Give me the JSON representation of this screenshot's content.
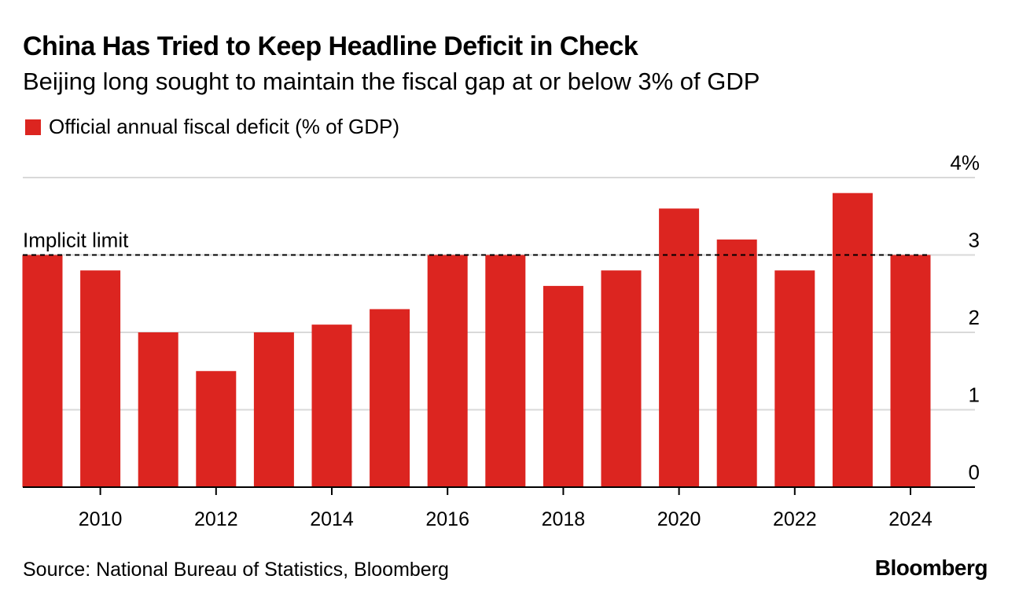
{
  "header": {
    "title": "China Has Tried to Keep Headline Deficit in Check",
    "subtitle": "Beijing long sought to maintain the fiscal gap at or below 3% of GDP"
  },
  "legend": {
    "label": "Official annual fiscal deficit (% of GDP)"
  },
  "footer": {
    "source": "Source: National Bureau of Statistics, Bloomberg",
    "brand": "Bloomberg"
  },
  "colors": {
    "bar": "#dc2520",
    "grid": "#d9d9d9",
    "axis": "#000000",
    "text": "#000000"
  },
  "chart_data": {
    "type": "bar",
    "title": "China Has Tried to Keep Headline Deficit in Check",
    "subtitle": "Beijing long sought to maintain the fiscal gap at or below 3% of GDP",
    "xlabel": "",
    "ylabel": "",
    "categories": [
      2009,
      2010,
      2011,
      2012,
      2013,
      2014,
      2015,
      2016,
      2017,
      2018,
      2019,
      2020,
      2021,
      2022,
      2023,
      2024
    ],
    "series": [
      {
        "name": "Official annual fiscal deficit (% of GDP)",
        "values": [
          3.0,
          2.8,
          2.0,
          1.5,
          2.0,
          2.1,
          2.3,
          3.0,
          3.0,
          2.6,
          2.8,
          3.6,
          3.2,
          2.8,
          3.8,
          3.0
        ]
      }
    ],
    "ylim": [
      0,
      4
    ],
    "yticks": [
      {
        "value": 0,
        "label": "0"
      },
      {
        "value": 1,
        "label": "1"
      },
      {
        "value": 2,
        "label": "2"
      },
      {
        "value": 3,
        "label": "3"
      },
      {
        "value": 4,
        "label": "4%"
      }
    ],
    "xtick_labels": [
      "2010",
      "2012",
      "2014",
      "2016",
      "2018",
      "2020",
      "2022",
      "2024"
    ],
    "grid": true,
    "y_axis_side": "right",
    "legend_position": "top-left",
    "reference_line": {
      "value": 3,
      "label": "Implicit limit",
      "style": "dashed"
    }
  }
}
